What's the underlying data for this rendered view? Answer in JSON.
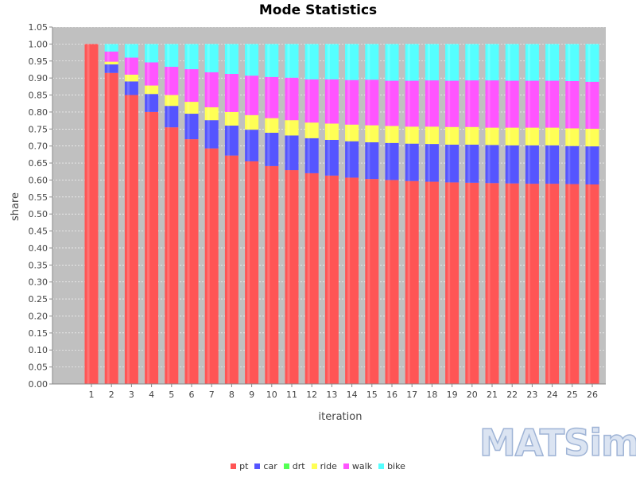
{
  "chart_data": {
    "type": "bar",
    "stacked": true,
    "title": "Mode Statistics",
    "xlabel": "iteration",
    "ylabel": "share",
    "ylim": [
      0,
      1.05
    ],
    "yticks": [
      "0.00",
      "0.05",
      "0.10",
      "0.15",
      "0.20",
      "0.25",
      "0.30",
      "0.35",
      "0.40",
      "0.45",
      "0.50",
      "0.55",
      "0.60",
      "0.65",
      "0.70",
      "0.75",
      "0.80",
      "0.85",
      "0.90",
      "0.95",
      "1.00",
      "1.05"
    ],
    "categories": [
      "1",
      "2",
      "3",
      "4",
      "5",
      "6",
      "7",
      "8",
      "9",
      "10",
      "11",
      "12",
      "13",
      "14",
      "15",
      "16",
      "17",
      "18",
      "19",
      "20",
      "21",
      "22",
      "23",
      "24",
      "25",
      "26"
    ],
    "legend_position": "bottom",
    "grid": true,
    "series": [
      {
        "name": "pt",
        "color": "#ff5555",
        "values": [
          1.0,
          0.915,
          0.85,
          0.8,
          0.755,
          0.72,
          0.693,
          0.672,
          0.655,
          0.641,
          0.629,
          0.62,
          0.613,
          0.607,
          0.603,
          0.6,
          0.597,
          0.595,
          0.593,
          0.592,
          0.591,
          0.59,
          0.589,
          0.589,
          0.588,
          0.587
        ]
      },
      {
        "name": "car",
        "color": "#5555ff",
        "values": [
          0.0,
          0.025,
          0.04,
          0.053,
          0.063,
          0.075,
          0.083,
          0.088,
          0.093,
          0.098,
          0.102,
          0.103,
          0.105,
          0.107,
          0.108,
          0.109,
          0.11,
          0.111,
          0.111,
          0.112,
          0.112,
          0.112,
          0.113,
          0.113,
          0.112,
          0.112
        ]
      },
      {
        "name": "drt",
        "color": "#55ff55",
        "values": [
          0,
          0,
          0,
          0,
          0,
          0,
          0,
          0,
          0,
          0,
          0,
          0,
          0,
          0,
          0,
          0,
          0,
          0,
          0,
          0,
          0,
          0,
          0,
          0,
          0,
          0
        ]
      },
      {
        "name": "ride",
        "color": "#ffff55",
        "values": [
          0.0,
          0.008,
          0.02,
          0.025,
          0.032,
          0.035,
          0.038,
          0.04,
          0.043,
          0.043,
          0.045,
          0.046,
          0.048,
          0.049,
          0.05,
          0.05,
          0.05,
          0.051,
          0.052,
          0.052,
          0.051,
          0.052,
          0.052,
          0.052,
          0.052,
          0.052
        ]
      },
      {
        "name": "walk",
        "color": "#ff55ff",
        "values": [
          0.0,
          0.03,
          0.05,
          0.068,
          0.083,
          0.096,
          0.103,
          0.112,
          0.116,
          0.121,
          0.125,
          0.127,
          0.13,
          0.131,
          0.134,
          0.133,
          0.135,
          0.136,
          0.136,
          0.137,
          0.139,
          0.138,
          0.138,
          0.138,
          0.139,
          0.138
        ]
      },
      {
        "name": "bike",
        "color": "#55ffff",
        "values": [
          0.0,
          0.022,
          0.04,
          0.054,
          0.067,
          0.074,
          0.083,
          0.088,
          0.093,
          0.097,
          0.099,
          0.104,
          0.104,
          0.106,
          0.105,
          0.108,
          0.108,
          0.107,
          0.108,
          0.107,
          0.107,
          0.108,
          0.108,
          0.108,
          0.109,
          0.111
        ]
      }
    ]
  },
  "logo_text": "MATSim"
}
